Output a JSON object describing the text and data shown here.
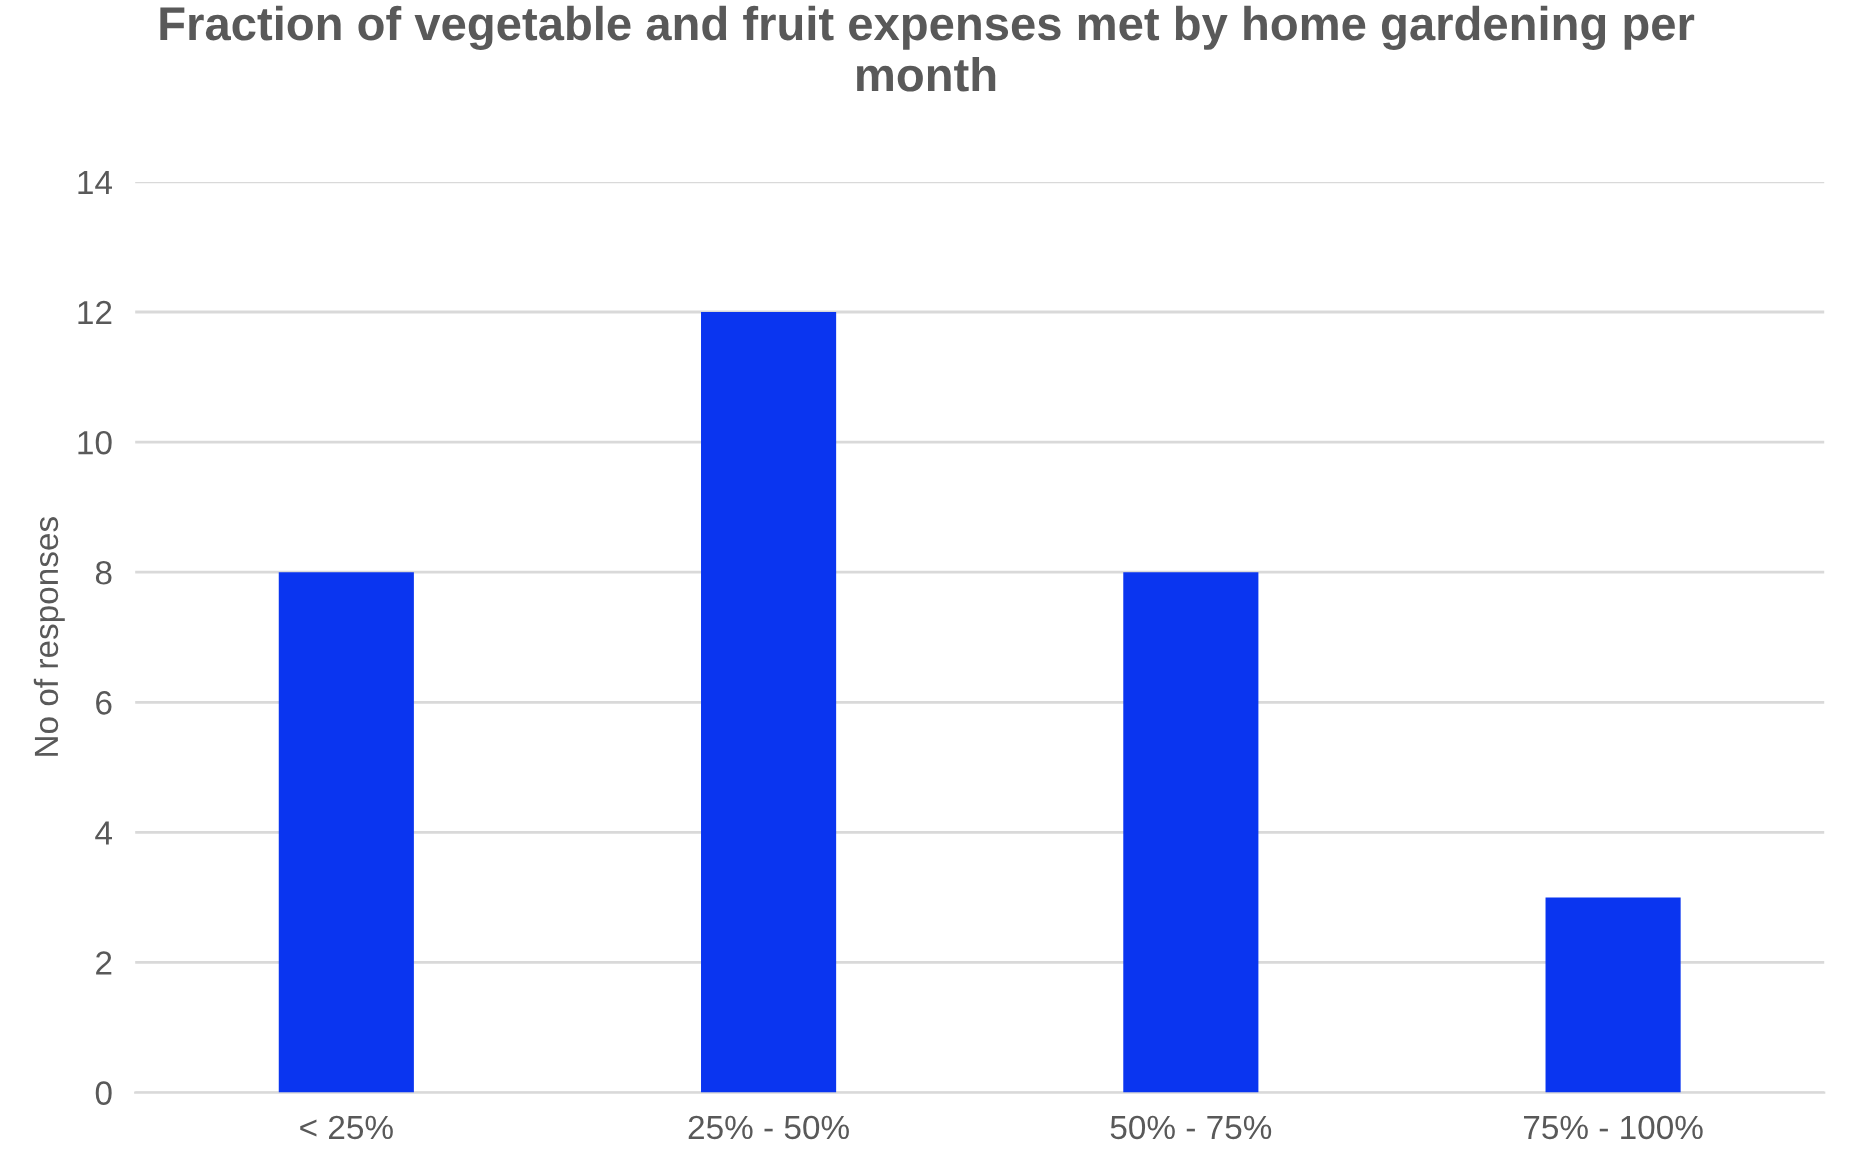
{
  "chart_data": {
    "type": "bar",
    "title": "Fraction of vegetable and fruit expenses met by home gardening per month",
    "ylabel": "No of responses",
    "categories": [
      "< 25%",
      "25% - 50%",
      "50% - 75%",
      "75% - 100%"
    ],
    "values": [
      8,
      12,
      8,
      3
    ],
    "color": "#0a35f0",
    "ylim": [
      0,
      14
    ],
    "yticks": [
      0,
      2,
      4,
      6,
      8,
      10,
      12,
      14
    ],
    "grid": "y",
    "legend": false
  }
}
